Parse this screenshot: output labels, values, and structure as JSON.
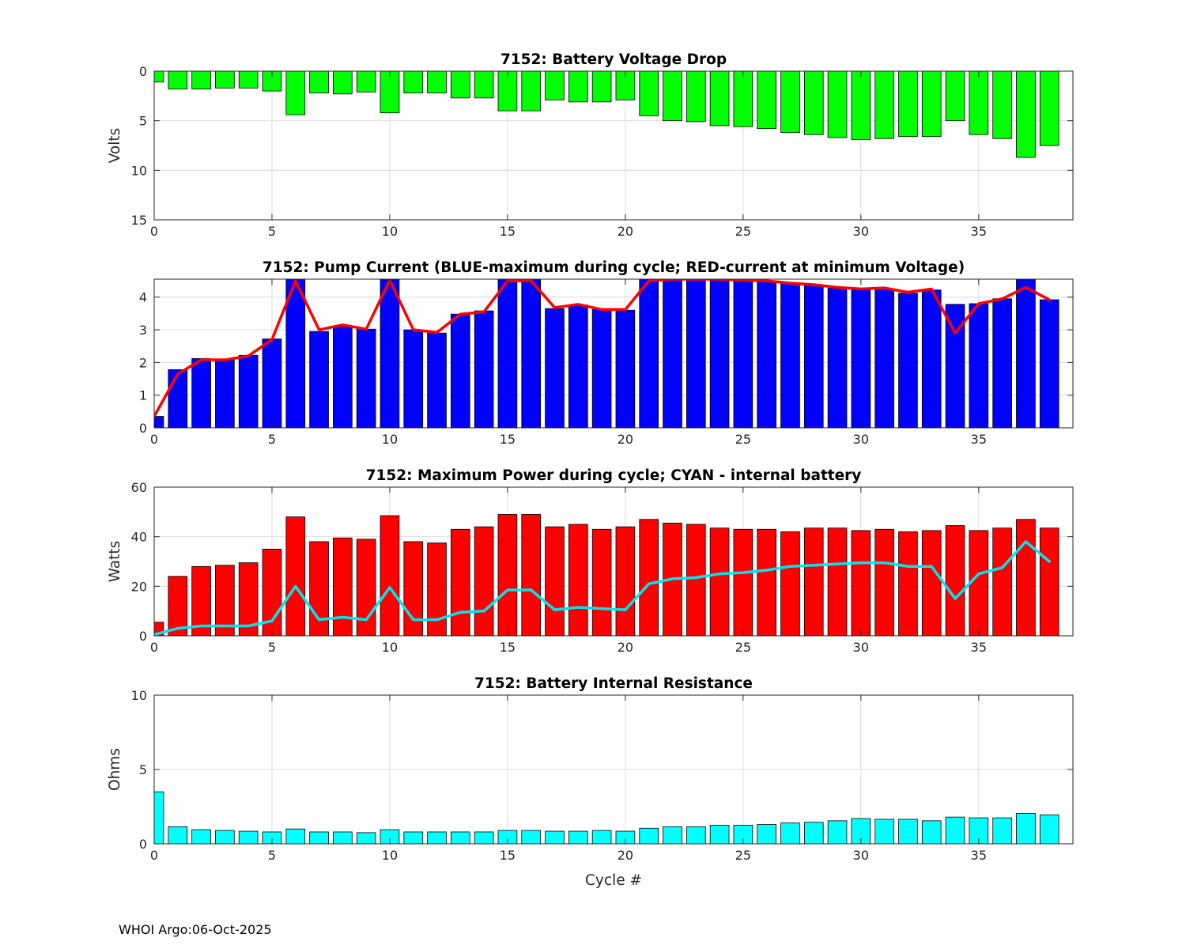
{
  "footer_text": "WHOI Argo:06-Oct-2025",
  "colors": {
    "voltage_bar": "#00ff00",
    "pump_bar": "#0000ff",
    "pump_line": "#ff0000",
    "power_bar": "#ff0000",
    "power_line": "#00e5ee",
    "resistance_bar": "#00ffff",
    "edge": "#000000",
    "grid": "#dcdcdc"
  },
  "chart_data": [
    {
      "id": "voltage",
      "type": "bar",
      "title": "7152: Battery Voltage Drop",
      "ylabel": "Volts",
      "xlabel": "",
      "xlim": [
        0,
        39
      ],
      "ylim": [
        0,
        15
      ],
      "y_reversed": true,
      "xticks": [
        0,
        5,
        10,
        15,
        20,
        25,
        30,
        35
      ],
      "yticks": [
        0,
        5,
        10,
        15
      ],
      "grid": true,
      "x": [
        0,
        1,
        2,
        3,
        4,
        5,
        6,
        7,
        8,
        9,
        10,
        11,
        12,
        13,
        14,
        15,
        16,
        17,
        18,
        19,
        20,
        21,
        22,
        23,
        24,
        25,
        26,
        27,
        28,
        29,
        30,
        31,
        32,
        33,
        34,
        35,
        36,
        37,
        38
      ],
      "series": [
        {
          "name": "Voltage drop",
          "kind": "bar",
          "values": [
            1.1,
            1.8,
            1.8,
            1.7,
            1.7,
            2.0,
            4.4,
            2.2,
            2.3,
            2.1,
            4.2,
            2.2,
            2.2,
            2.7,
            2.7,
            4.0,
            4.0,
            2.9,
            3.1,
            3.1,
            2.9,
            4.5,
            5.0,
            5.1,
            5.5,
            5.6,
            5.8,
            6.2,
            6.4,
            6.7,
            6.9,
            6.8,
            6.6,
            6.6,
            5.0,
            6.4,
            6.8,
            8.7,
            7.5
          ]
        }
      ]
    },
    {
      "id": "pump",
      "type": "bar",
      "title": "7152: Pump Current (BLUE-maximum during cycle; RED-current at minimum Voltage)",
      "ylabel": "",
      "xlabel": "",
      "xlim": [
        0,
        39
      ],
      "ylim": [
        0,
        4.55
      ],
      "y_reversed": false,
      "xticks": [
        0,
        5,
        10,
        15,
        20,
        25,
        30,
        35
      ],
      "yticks": [
        0,
        1,
        2,
        3,
        4
      ],
      "grid": true,
      "x": [
        0,
        1,
        2,
        3,
        4,
        5,
        6,
        7,
        8,
        9,
        10,
        11,
        12,
        13,
        14,
        15,
        16,
        17,
        18,
        19,
        20,
        21,
        22,
        23,
        24,
        25,
        26,
        27,
        28,
        29,
        30,
        31,
        32,
        33,
        34,
        35,
        36,
        37,
        38
      ],
      "series": [
        {
          "name": "Maximum during cycle",
          "kind": "bar",
          "values": [
            0.35,
            1.78,
            2.12,
            2.1,
            2.22,
            2.72,
            4.55,
            2.95,
            3.1,
            3.02,
            4.55,
            3.0,
            2.9,
            3.48,
            3.58,
            4.55,
            4.55,
            3.65,
            3.76,
            3.62,
            3.6,
            4.55,
            4.55,
            4.55,
            4.55,
            4.5,
            4.5,
            4.42,
            4.36,
            4.28,
            4.22,
            4.25,
            4.12,
            4.22,
            3.78,
            3.8,
            3.95,
            4.55,
            3.92
          ]
        },
        {
          "name": "Current at minimum Voltage",
          "kind": "line",
          "values": [
            0.35,
            1.65,
            2.08,
            2.08,
            2.2,
            2.7,
            4.5,
            3.0,
            3.15,
            3.02,
            4.52,
            3.0,
            2.92,
            3.48,
            3.55,
            4.5,
            4.5,
            3.68,
            3.78,
            3.62,
            3.62,
            4.5,
            4.55,
            4.55,
            4.55,
            4.52,
            4.5,
            4.43,
            4.38,
            4.3,
            4.25,
            4.28,
            4.15,
            4.25,
            2.9,
            3.8,
            3.95,
            4.3,
            3.92
          ]
        }
      ]
    },
    {
      "id": "power",
      "type": "bar",
      "title": "7152: Maximum Power during cycle; CYAN - internal battery",
      "ylabel": "Watts",
      "xlabel": "",
      "xlim": [
        0,
        39
      ],
      "ylim": [
        0,
        60
      ],
      "y_reversed": false,
      "xticks": [
        0,
        5,
        10,
        15,
        20,
        25,
        30,
        35
      ],
      "yticks": [
        0,
        20,
        40,
        60
      ],
      "grid": true,
      "x": [
        0,
        1,
        2,
        3,
        4,
        5,
        6,
        7,
        8,
        9,
        10,
        11,
        12,
        13,
        14,
        15,
        16,
        17,
        18,
        19,
        20,
        21,
        22,
        23,
        24,
        25,
        26,
        27,
        28,
        29,
        30,
        31,
        32,
        33,
        34,
        35,
        36,
        37,
        38
      ],
      "series": [
        {
          "name": "Maximum Power",
          "kind": "bar",
          "values": [
            5.5,
            24,
            28,
            28.5,
            29.5,
            35,
            48,
            38,
            39.5,
            39,
            48.5,
            38,
            37.5,
            43,
            44,
            49,
            49,
            44,
            45,
            43,
            44,
            47,
            45.5,
            45,
            43.5,
            43,
            43,
            42,
            43.5,
            43.5,
            42.5,
            43,
            42,
            42.5,
            44.5,
            42.5,
            43.5,
            47,
            43.5
          ]
        },
        {
          "name": "Internal battery",
          "kind": "line",
          "values": [
            0.5,
            3,
            4,
            4,
            4,
            6,
            20,
            6.5,
            7.5,
            6.5,
            19.5,
            6.5,
            6.5,
            9.5,
            10,
            18.5,
            18.5,
            10.5,
            11.5,
            11,
            10.5,
            21,
            23,
            23.5,
            25,
            25.5,
            26.5,
            28,
            28.5,
            29,
            29.5,
            29.5,
            28,
            28,
            15,
            25,
            27.5,
            38,
            30
          ]
        }
      ]
    },
    {
      "id": "resistance",
      "type": "bar",
      "title": "7152: Battery Internal Resistance",
      "ylabel": "Ohms",
      "xlabel": "Cycle #",
      "xlim": [
        0,
        39
      ],
      "ylim": [
        0,
        10
      ],
      "y_reversed": false,
      "xticks": [
        0,
        5,
        10,
        15,
        20,
        25,
        30,
        35
      ],
      "yticks": [
        0,
        5,
        10
      ],
      "grid": true,
      "x": [
        0,
        1,
        2,
        3,
        4,
        5,
        6,
        7,
        8,
        9,
        10,
        11,
        12,
        13,
        14,
        15,
        16,
        17,
        18,
        19,
        20,
        21,
        22,
        23,
        24,
        25,
        26,
        27,
        28,
        29,
        30,
        31,
        32,
        33,
        34,
        35,
        36,
        37,
        38
      ],
      "series": [
        {
          "name": "Internal Resistance",
          "kind": "bar",
          "values": [
            3.5,
            1.15,
            0.95,
            0.9,
            0.85,
            0.8,
            1.0,
            0.8,
            0.8,
            0.75,
            0.95,
            0.8,
            0.8,
            0.8,
            0.8,
            0.9,
            0.9,
            0.85,
            0.85,
            0.9,
            0.85,
            1.05,
            1.15,
            1.15,
            1.25,
            1.25,
            1.3,
            1.4,
            1.45,
            1.55,
            1.7,
            1.65,
            1.65,
            1.55,
            1.8,
            1.75,
            1.75,
            2.05,
            1.95
          ]
        }
      ]
    }
  ]
}
